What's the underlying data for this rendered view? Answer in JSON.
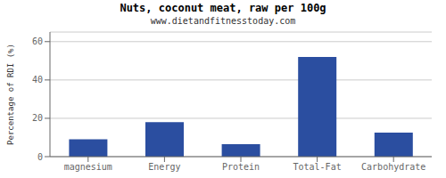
{
  "chart_data": {
    "type": "bar",
    "title": "Nuts, coconut meat, raw per 100g",
    "subtitle": "www.dietandfitnesstoday.com",
    "categories": [
      "magnesium",
      "Energy",
      "Protein",
      "Total-Fat",
      "Carbohydrate"
    ],
    "values": [
      9,
      18,
      6.5,
      52,
      12.5
    ],
    "color": "#2b4ea0",
    "ylabel": "Percentage of RDI (%)",
    "ylim": [
      0,
      65
    ],
    "yticks": [
      0,
      20,
      40,
      60
    ],
    "grid": true
  }
}
